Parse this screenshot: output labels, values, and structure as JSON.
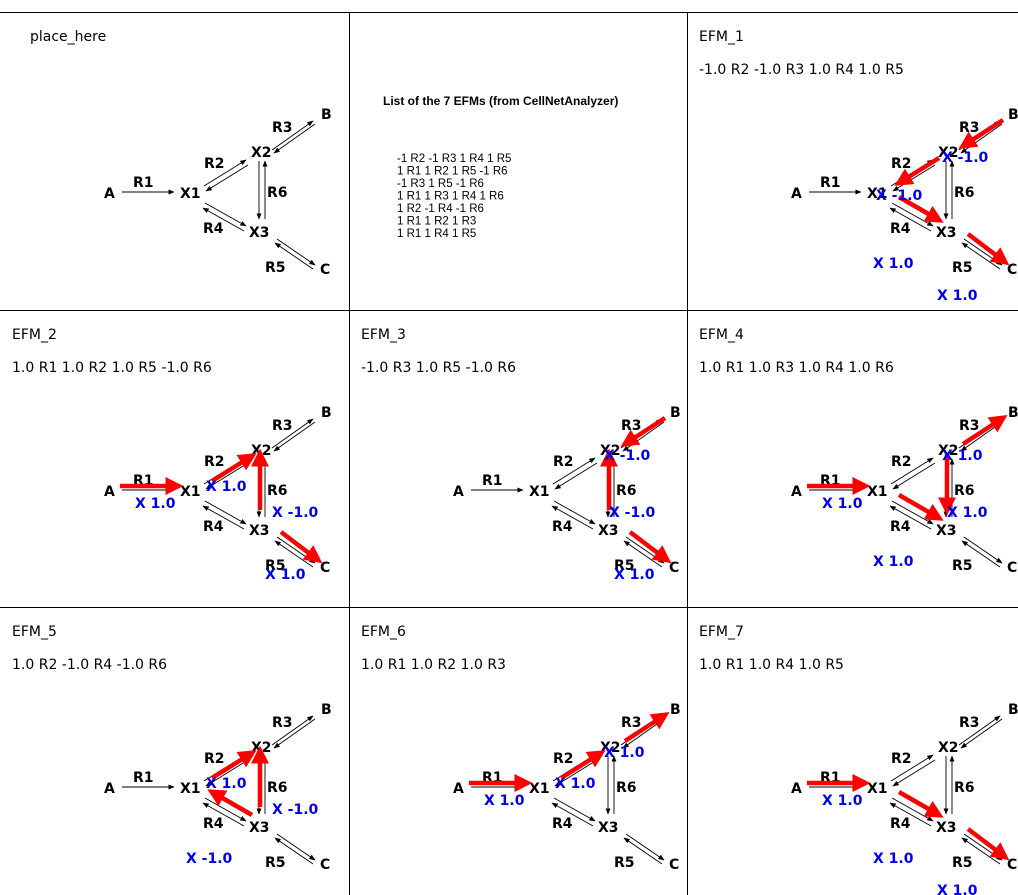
{
  "placeholder_label": "place_here",
  "list_panel": {
    "title": "List of the 7  EFMs (from CellNetAnalyzer)",
    "lines": [
      "-1 R2   -1 R3   1 R4   1 R5",
      "1 R1   1 R2   1 R5   -1 R6",
      "-1 R3   1 R5   -1 R6",
      "1 R1   1 R3   1 R4   1 R6",
      "1 R2   -1 R4   -1 R6",
      "1 R1   1 R2   1 R3",
      "1 R1   1 R4   1 R5"
    ]
  },
  "network": {
    "nodes": [
      "A",
      "X1",
      "X2",
      "X3",
      "B",
      "C"
    ],
    "reactions": [
      "R1",
      "R2",
      "R3",
      "R4",
      "R5",
      "R6"
    ]
  },
  "colors": {
    "active_flux_arrow": "#ff0000",
    "multiplier_text": "#0000ee",
    "grid_lines": "#000000"
  },
  "efms": [
    {
      "title": "EFM_1",
      "flux_text": "-1.0 R2    -1.0 R3    1.0 R4    1.0 R5",
      "active": {
        "R2": -1.0,
        "R3": -1.0,
        "R4": 1.0,
        "R5": 1.0
      },
      "labels": [
        "X -1.0",
        "X -1.0",
        "X 1.0",
        "X 1.0"
      ]
    },
    {
      "title": "EFM_2",
      "flux_text": "1.0 R1    1.0 R2    1.0 R5    -1.0 R6",
      "active": {
        "R1": 1.0,
        "R2": 1.0,
        "R5": 1.0,
        "R6": -1.0
      },
      "labels": [
        "X 1.0",
        "X 1.0",
        "X 1.0",
        "X -1.0"
      ]
    },
    {
      "title": "EFM_3",
      "flux_text": "-1.0 R3    1.0 R5    -1.0 R6",
      "active": {
        "R3": -1.0,
        "R5": 1.0,
        "R6": -1.0
      },
      "labels": [
        "X -1.0",
        "X 1.0",
        "X -1.0"
      ]
    },
    {
      "title": "EFM_4",
      "flux_text": "1.0 R1    1.0 R3    1.0 R4    1.0 R6",
      "active": {
        "R1": 1.0,
        "R3": 1.0,
        "R4": 1.0,
        "R6": 1.0
      },
      "labels": [
        "X 1.0",
        "X 1.0",
        "X 1.0",
        "X 1.0"
      ]
    },
    {
      "title": "EFM_5",
      "flux_text": "1.0 R2    -1.0 R4    -1.0 R6",
      "active": {
        "R2": 1.0,
        "R4": -1.0,
        "R6": -1.0
      },
      "labels": [
        "X 1.0",
        "X -1.0",
        "X -1.0"
      ]
    },
    {
      "title": "EFM_6",
      "flux_text": "1.0 R1    1.0 R2    1.0 R3",
      "active": {
        "R1": 1.0,
        "R2": 1.0,
        "R3": 1.0
      },
      "labels": [
        "X 1.0",
        "X 1.0",
        "X 1.0"
      ]
    },
    {
      "title": "EFM_7",
      "flux_text": "1.0 R1    1.0 R4    1.0 R5",
      "active": {
        "R1": 1.0,
        "R4": 1.0,
        "R5": 1.0
      },
      "labels": [
        "X 1.0",
        "X 1.0",
        "X 1.0"
      ]
    }
  ]
}
